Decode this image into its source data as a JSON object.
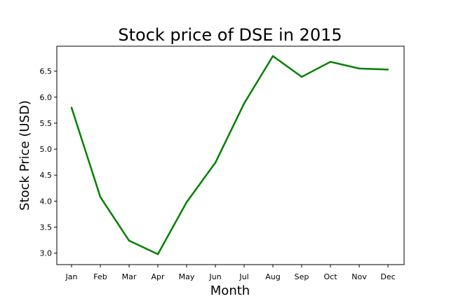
{
  "chart_data": {
    "type": "line",
    "title": "Stock price of DSE in 2015",
    "xlabel": "Month",
    "ylabel": "Stock Price (USD)",
    "categories": [
      "Jan",
      "Feb",
      "Mar",
      "Apr",
      "May",
      "Jun",
      "Jul",
      "Aug",
      "Sep",
      "Oct",
      "Nov",
      "Dec"
    ],
    "series": [
      {
        "values": [
          5.8,
          4.08,
          3.24,
          2.98,
          3.98,
          4.74,
          5.88,
          6.79,
          6.39,
          6.68,
          6.55,
          6.53
        ],
        "color": "#008000"
      }
    ],
    "ylim": [
      2.78,
      6.98
    ],
    "yticks": [
      3.0,
      3.5,
      4.0,
      4.5,
      5.0,
      5.5,
      6.0,
      6.5
    ],
    "ytick_labels": [
      "3.0",
      "3.5",
      "4.0",
      "4.5",
      "5.0",
      "5.5",
      "6.0",
      "6.5"
    ],
    "grid": false,
    "legend": "none"
  }
}
